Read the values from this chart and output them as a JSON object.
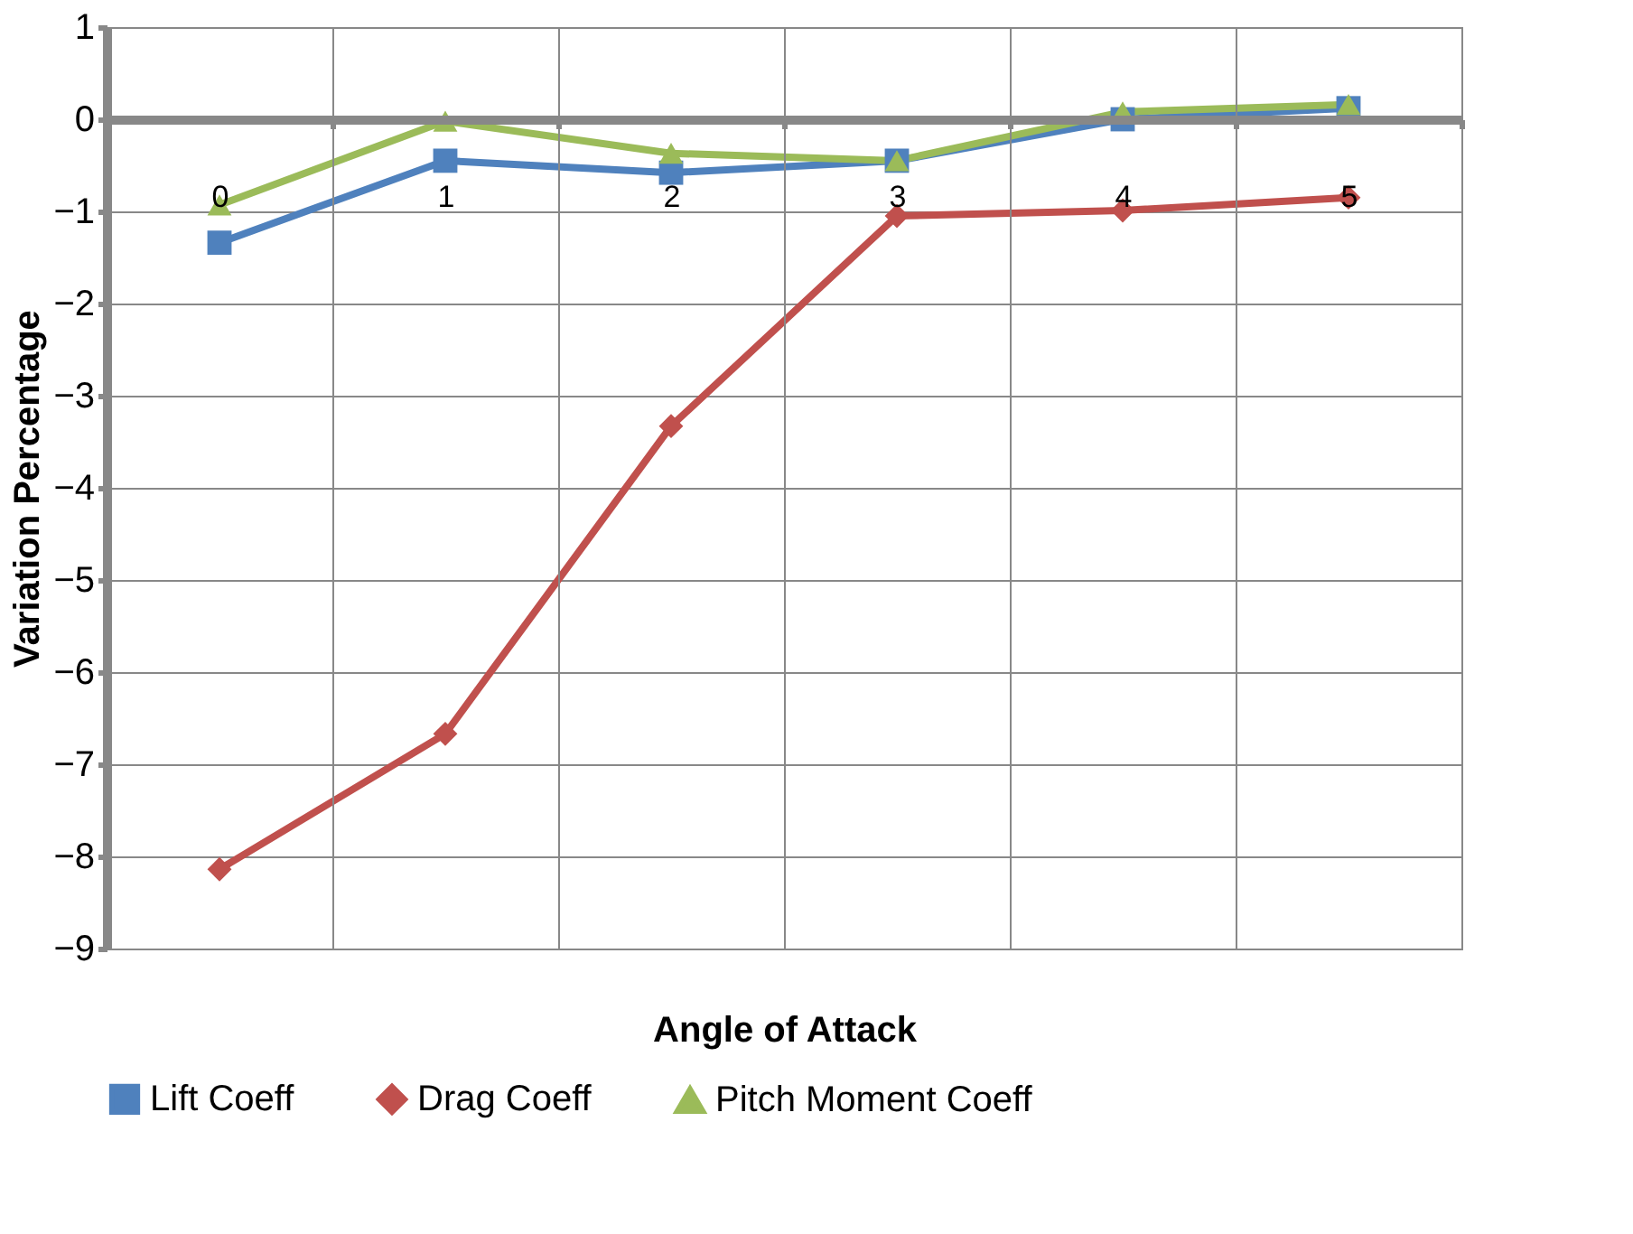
{
  "chart_data": {
    "type": "line",
    "xlabel": "Angle of Attack",
    "ylabel": "Variation Percentage",
    "categories": [
      "0",
      "1",
      "2",
      "3",
      "4",
      "5"
    ],
    "series": [
      {
        "name": "Lift Coeff",
        "color": "#4f81bd",
        "marker": "square",
        "values": [
          -1.34,
          -0.45,
          -0.58,
          -0.45,
          0.0,
          0.12
        ]
      },
      {
        "name": "Drag Coeff",
        "color": "#c0504d",
        "marker": "diamond",
        "values": [
          -8.14,
          -6.67,
          -3.33,
          -1.05,
          -0.99,
          -0.85
        ]
      },
      {
        "name": "Pitch Moment Coeff",
        "color": "#9bbb59",
        "marker": "triangle",
        "values": [
          -0.93,
          -0.02,
          -0.37,
          -0.45,
          0.08,
          0.16
        ]
      }
    ],
    "ylim": [
      -9,
      1
    ],
    "yticks": [
      -9,
      -8,
      -7,
      -6,
      -5,
      -4,
      -3,
      -2,
      -1,
      0,
      1
    ],
    "grid": true,
    "legend": "bottom",
    "line_style": "solid"
  }
}
